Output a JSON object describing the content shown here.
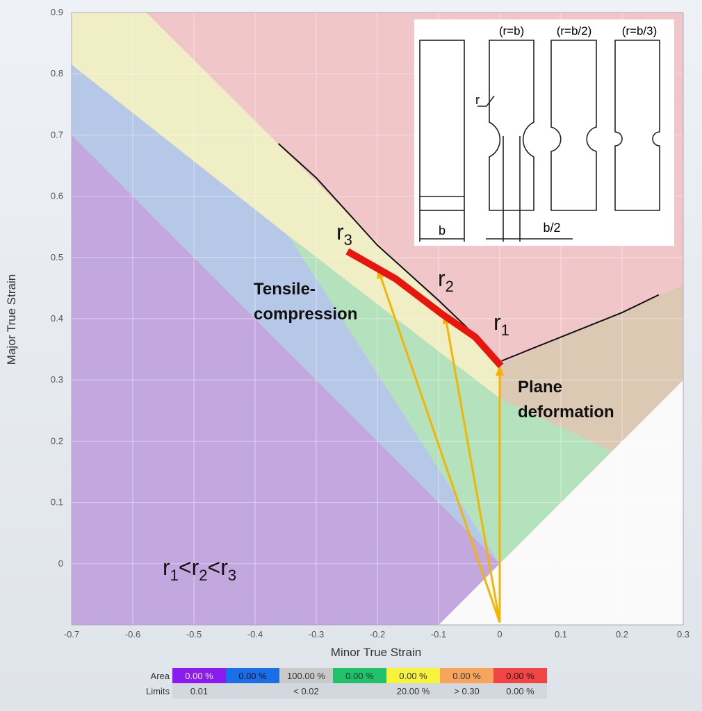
{
  "chart_data": {
    "type": "area",
    "xlabel": "Minor True Strain",
    "ylabel": "Major True Strain",
    "xlim": [
      -0.7,
      0.3
    ],
    "ylim": [
      -0.1,
      0.9
    ],
    "xticks": [
      "-0.7",
      "-0.6",
      "-0.5",
      "-0.4",
      "-0.3",
      "-0.2",
      "-0.1",
      "0",
      "0.1",
      "0.2",
      "0.3"
    ],
    "yticks": [
      "0.9",
      "0.8",
      "0.7",
      "0.6",
      "0.5",
      "0.4",
      "0.3",
      "0.2",
      "0.1",
      "0"
    ],
    "background_color": "#f0c6c9",
    "zones": [
      {
        "color": "#fafafa",
        "points": [
          [
            -0.1,
            -0.1
          ],
          [
            0.3,
            0.3
          ],
          [
            0.3,
            -0.1
          ]
        ]
      },
      {
        "color": "#c2a8de",
        "points": [
          [
            -0.7,
            -0.1
          ],
          [
            -0.7,
            0.7
          ],
          [
            0,
            0
          ],
          [
            -0.1,
            -0.1
          ]
        ]
      },
      {
        "color": "#b6c8e8",
        "points": [
          [
            -0.7,
            0.7
          ],
          [
            -0.7,
            0.815
          ],
          [
            -0.345,
            0.535
          ],
          [
            0,
            0
          ]
        ]
      },
      {
        "color": "#efeec4",
        "points": [
          [
            -0.7,
            0.815
          ],
          [
            -0.7,
            0.9
          ],
          [
            -0.578,
            0.9
          ],
          [
            0,
            0.325
          ],
          [
            0,
            0.27
          ],
          [
            -0.345,
            0.535
          ]
        ]
      },
      {
        "color": "#b4e2bc",
        "points": [
          [
            -0.345,
            0.535
          ],
          [
            0,
            0.27
          ],
          [
            0.18,
            0.185
          ],
          [
            0.18,
            0.18
          ],
          [
            0,
            0
          ]
        ]
      },
      {
        "color": "#dcc9b4",
        "points": [
          [
            0,
            0.325
          ],
          [
            0.3,
            0.455
          ],
          [
            0.3,
            0.3
          ],
          [
            0.18,
            0.18
          ],
          [
            0.18,
            0.185
          ],
          [
            0,
            0.27
          ]
        ]
      }
    ],
    "limit_curves": [
      [
        [
          -0.362,
          0.686
        ],
        [
          -0.3,
          0.63
        ],
        [
          -0.25,
          0.575
        ],
        [
          -0.2,
          0.52
        ],
        [
          -0.15,
          0.475
        ],
        [
          -0.1,
          0.43
        ],
        [
          -0.053,
          0.385
        ]
      ],
      [
        [
          0.003,
          0.331
        ],
        [
          0.05,
          0.35
        ],
        [
          0.1,
          0.37
        ],
        [
          0.15,
          0.39
        ],
        [
          0.2,
          0.41
        ],
        [
          0.26,
          0.439
        ]
      ]
    ],
    "r_curve": [
      [
        -0.249,
        0.51
      ],
      [
        -0.17,
        0.465
      ],
      [
        -0.095,
        0.408
      ],
      [
        -0.04,
        0.37
      ],
      [
        0.002,
        0.323
      ]
    ],
    "arrows": {
      "origin": [
        0,
        -0.096
      ],
      "tips": [
        [
          -0.2,
          0.484
        ],
        [
          -0.09,
          0.41
        ],
        [
          0,
          0.325
        ]
      ]
    },
    "annotations": {
      "r3": {
        "base": "r",
        "sub": "3"
      },
      "r2": {
        "base": "r",
        "sub": "2"
      },
      "r1": {
        "base": "r",
        "sub": "1"
      },
      "tensile_1": "Tensile-",
      "tensile_2": "compression",
      "plane_1": "Plane",
      "plane_2": "deformation",
      "order": {
        "r": "r",
        "s1": "1",
        "s2": "2",
        "s3": "3",
        "lt": "<"
      }
    },
    "inset": {
      "labels": [
        "(r=b)",
        "(r=b/2)",
        "(r=b/3)"
      ],
      "r": "r",
      "b": "b",
      "b2": "b/2"
    }
  },
  "legend": {
    "area_label": "Area",
    "limits_label": "Limits",
    "area": [
      {
        "text": "0.00 %",
        "color": "#8a1cf0",
        "fg": "#eee"
      },
      {
        "text": "0.00 %",
        "color": "#1a6fe6",
        "fg": "#113"
      },
      {
        "text": "100.00 %",
        "color": "#c9c9c9",
        "fg": "#333"
      },
      {
        "text": "0.00 %",
        "color": "#21c06a",
        "fg": "#133"
      },
      {
        "text": "0.00 %",
        "color": "#f6f53c",
        "fg": "#333"
      },
      {
        "text": "0.00 %",
        "color": "#f8a55c",
        "fg": "#333"
      },
      {
        "text": "0.00 %",
        "color": "#f04545",
        "fg": "#311"
      }
    ],
    "limits": [
      "0.01",
      "",
      "< 0.02",
      "",
      "20.00 %",
      "> 0.30",
      "0.00 %"
    ]
  }
}
